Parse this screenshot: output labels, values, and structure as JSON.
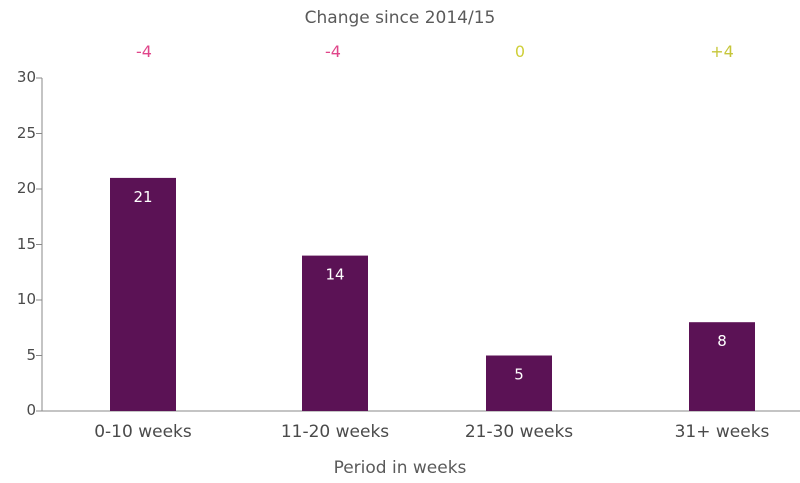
{
  "chart_data": {
    "type": "bar",
    "categories": [
      "0-10 weeks",
      "11-20 weeks",
      "21-30 weeks",
      "31+ weeks"
    ],
    "values": [
      21,
      14,
      5,
      8
    ],
    "bar_labels": [
      "21",
      "14",
      "5",
      "8"
    ],
    "title": "",
    "xlabel": "Period in weeks",
    "ylabel": "",
    "ylim": [
      0,
      30
    ],
    "yticks": [
      "0",
      "5",
      "10",
      "15",
      "20",
      "25",
      "30"
    ],
    "grid": false,
    "change_title": "Change since 2014/15",
    "changes": [
      "-4",
      "-4",
      "0",
      "+4"
    ],
    "colors": {
      "bar": "#5b1255",
      "axis": "#888888",
      "change_negative": "#e0468a",
      "change_neutral": "#cfcf3a",
      "change_positive": "#c6c63a"
    }
  }
}
